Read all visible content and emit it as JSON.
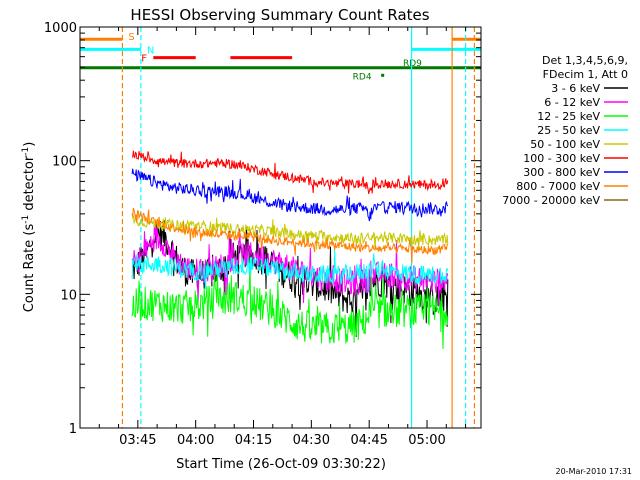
{
  "chart_data": {
    "type": "line",
    "title": "HESSI Observing Summary Count Rates",
    "xlabel": "Start Time (26-Oct-09 03:30:22)",
    "ylabel": "Count Rate (s",
    "ylabel_sup1": "-1",
    "ylabel_mid": " detector",
    "ylabel_sup2": "-1",
    "ylabel_end": ")",
    "y_scale": "log",
    "ylim": [
      1,
      1000
    ],
    "y_ticks": [
      1,
      10,
      100,
      1000
    ],
    "y_tick_labels": [
      "1",
      "10",
      "100",
      "1000"
    ],
    "xlim_minutes": [
      0,
      104
    ],
    "x_ticks": [
      {
        "t": 15,
        "label": "03:45"
      },
      {
        "t": 30,
        "label": "04:00"
      },
      {
        "t": 45,
        "label": "04:15"
      },
      {
        "t": 60,
        "label": "04:30"
      },
      {
        "t": 75,
        "label": "04:45"
      },
      {
        "t": 90,
        "label": "05:00"
      }
    ],
    "legend_header": [
      "Det 1,3,4,5,6,9,",
      "FDecim 1, Att 0"
    ],
    "legend_position": "right",
    "timestamp": "20-Mar-2010 17:31",
    "grid": false,
    "data_start": 13.5,
    "data_end": 95.5,
    "series": [
      {
        "name": "3 - 6 keV",
        "color": "#000000",
        "x": [
          13.5,
          16,
          18,
          19,
          20,
          22,
          24,
          26,
          29,
          33,
          36,
          40,
          44,
          48,
          52,
          56,
          60,
          64,
          68,
          71,
          74,
          76,
          80,
          84,
          88,
          91,
          93,
          95.5
        ],
        "y": [
          15,
          18,
          22,
          28,
          29,
          27,
          21,
          16,
          14,
          14,
          15,
          19,
          20,
          18,
          15,
          13,
          12,
          11,
          9.5,
          9,
          10,
          13,
          12,
          11,
          10,
          9,
          9,
          10
        ]
      },
      {
        "name": "6 - 12 keV",
        "color": "#ff00ff",
        "x": [
          13.5,
          16,
          18,
          19,
          20,
          22,
          24,
          26,
          29,
          33,
          36,
          40,
          44,
          48,
          52,
          56,
          60,
          64,
          68,
          71,
          74,
          76,
          80,
          84,
          88,
          91,
          93,
          95.5
        ],
        "y": [
          17,
          19,
          23,
          26,
          26,
          24,
          20,
          17,
          15,
          15,
          16,
          19,
          20,
          19,
          17,
          15,
          14,
          13,
          12.5,
          12,
          12.5,
          14,
          14,
          13.5,
          13,
          12.5,
          12.5,
          13
        ]
      },
      {
        "name": "12 - 25 keV",
        "color": "#00ff00",
        "x": [
          13.5,
          16,
          20,
          24,
          28,
          32,
          36,
          40,
          44,
          48,
          52,
          56,
          60,
          64,
          68,
          72,
          74,
          76,
          80,
          84,
          88,
          91,
          93,
          95.5
        ],
        "y": [
          8,
          8.5,
          8.5,
          8,
          8,
          8.5,
          9,
          9.5,
          9,
          8,
          7,
          6,
          5.5,
          5.5,
          5.5,
          5.8,
          6.5,
          7.5,
          7.5,
          7.5,
          7.5,
          7.5,
          7.5,
          8
        ]
      },
      {
        "name": "25 - 50 keV",
        "color": "#00ffff",
        "x": [
          13.5,
          16,
          20,
          24,
          28,
          32,
          36,
          40,
          44,
          48,
          52,
          56,
          60,
          64,
          68,
          72,
          76,
          80,
          84,
          88,
          91,
          93,
          95.5
        ],
        "y": [
          16,
          16.5,
          17,
          16,
          15,
          15,
          15.5,
          16,
          16.5,
          16,
          15,
          14.5,
          14,
          14,
          14,
          14.5,
          15.5,
          15,
          14.5,
          14,
          14,
          14,
          14.5
        ]
      },
      {
        "name": "50 - 100 keV",
        "color": "#c8c800",
        "x": [
          13.5,
          16,
          20,
          24,
          28,
          32,
          36,
          40,
          44,
          48,
          52,
          56,
          60,
          64,
          68,
          72,
          76,
          80,
          84,
          88,
          91,
          93,
          95.5
        ],
        "y": [
          37,
          35,
          34,
          33,
          33,
          32.5,
          31.5,
          31,
          30.5,
          30,
          29,
          28,
          27.5,
          27,
          26.5,
          26,
          26.5,
          26.5,
          26,
          25.5,
          25.5,
          25.5,
          26
        ]
      },
      {
        "name": "100 - 300 keV",
        "color": "#ff0000",
        "x": [
          13.5,
          16,
          20,
          24,
          28,
          32,
          36,
          40,
          44,
          48,
          52,
          56,
          60,
          64,
          68,
          72,
          74,
          75,
          76,
          80,
          84,
          88,
          91,
          93,
          95.5
        ],
        "y": [
          113,
          108,
          100,
          96,
          95,
          95,
          96,
          94,
          88,
          83,
          78,
          74,
          70,
          68,
          67,
          67,
          67,
          59,
          67,
          67,
          67,
          66,
          66,
          66,
          70
        ]
      },
      {
        "name": "300 - 800 keV",
        "color": "#0000ff",
        "x": [
          13.5,
          16,
          20,
          24,
          28,
          32,
          36,
          40,
          44,
          48,
          52,
          56,
          60,
          64,
          68,
          72,
          74,
          75,
          76,
          80,
          84,
          88,
          91,
          93,
          95.5
        ],
        "y": [
          80,
          75,
          68,
          63,
          61,
          59,
          59,
          58,
          54,
          50,
          47,
          45,
          44,
          43,
          43,
          44,
          44,
          37,
          44,
          45,
          45,
          44,
          44,
          43,
          45
        ]
      },
      {
        "name": "800 - 7000 keV",
        "color": "#ff8000",
        "x": [
          13.5,
          16,
          20,
          24,
          28,
          32,
          36,
          40,
          44,
          48,
          52,
          56,
          60,
          64,
          68,
          72,
          76,
          80,
          84,
          88,
          91,
          93,
          95.5
        ],
        "y": [
          42,
          38,
          34,
          32,
          30,
          29,
          28,
          27.5,
          27,
          26,
          25,
          24.5,
          24,
          23.5,
          23,
          22.5,
          22,
          22,
          22,
          21.5,
          21.5,
          21.5,
          22
        ]
      },
      {
        "name": "7000 - 20000 keV",
        "color": "#8b6914",
        "x": [],
        "y": []
      }
    ],
    "flag_rows": [
      {
        "label": "S",
        "color": "#ff8000",
        "value": 810,
        "segments": [
          [
            0,
            11
          ],
          [
            96.5,
            104
          ]
        ]
      },
      {
        "label": "N",
        "color": "#00ffff",
        "value": 680,
        "segments": [
          [
            0,
            15.8
          ],
          [
            86,
            104
          ]
        ]
      },
      {
        "label": "F",
        "color": "#ff0000",
        "value": 590,
        "segments": [
          [
            19,
            30
          ],
          [
            39,
            55
          ]
        ]
      },
      {
        "label": "RD9",
        "color": "#007800",
        "value": 495,
        "segments": [
          [
            0,
            104
          ]
        ]
      }
    ],
    "flag_annotation": {
      "label": "RD4",
      "color": "#007800",
      "t": 78.5,
      "value": 435
    },
    "vertical_markers": [
      {
        "t": 11,
        "color": "#ff8000",
        "style": "dashed"
      },
      {
        "t": 15.8,
        "color": "#00ffff",
        "style": "dashed"
      },
      {
        "t": 86,
        "color": "#00ffff",
        "style": "solid"
      },
      {
        "t": 96.5,
        "color": "#ff8000",
        "style": "solid"
      },
      {
        "t": 100,
        "color": "#00ffff",
        "style": "dashed"
      },
      {
        "t": 102.3,
        "color": "#ff8000",
        "style": "dashed"
      }
    ]
  }
}
